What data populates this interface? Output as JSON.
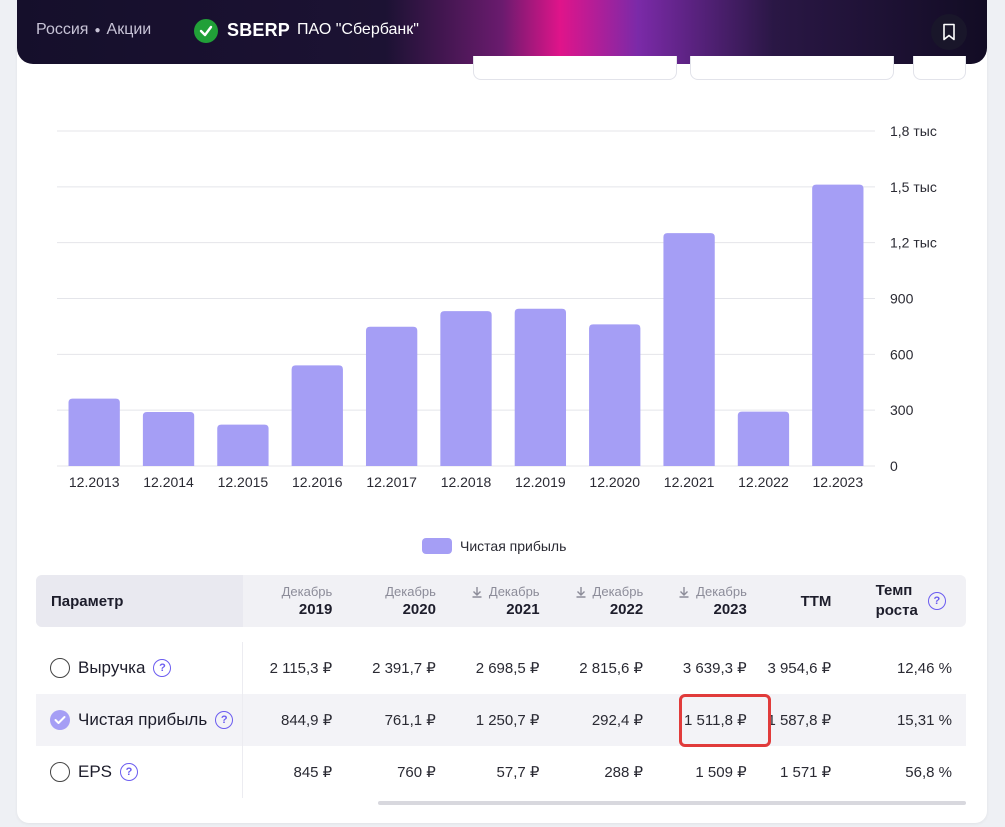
{
  "header": {
    "breadcrumb": [
      "Россия",
      "Акции"
    ],
    "ticker": "SBERP",
    "company": "ПАО \"Сбербанк\"",
    "logo_icon": "sber-logo-icon",
    "bookmark_icon": "bookmark-icon"
  },
  "chart_data": {
    "type": "bar",
    "categories": [
      "12.2013",
      "12.2014",
      "12.2015",
      "12.2016",
      "12.2017",
      "12.2018",
      "12.2019",
      "12.2020",
      "12.2021",
      "12.2022",
      "12.2023"
    ],
    "series": [
      {
        "name": "Чистая прибыль",
        "values": [
          362,
          290,
          222,
          541,
          748,
          832,
          845,
          761,
          1251,
          292,
          1512
        ],
        "color": "#a59ef5"
      }
    ],
    "ylim": [
      0,
      1800
    ],
    "yticks": [
      0,
      300,
      600,
      900,
      1200,
      1500,
      1800
    ],
    "ytick_labels": [
      "0",
      "300",
      "600",
      "900",
      "1,2 тыс",
      "1,5 тыс",
      "1,8 тыс"
    ],
    "grid": true,
    "y_axis_side": "right",
    "legend_position": "bottom-center"
  },
  "table": {
    "param_header": "Параметр",
    "columns": [
      {
        "month": "Декабрь",
        "year": "2019",
        "download_icon": false
      },
      {
        "month": "Декабрь",
        "year": "2020",
        "download_icon": false
      },
      {
        "month": "Декабрь",
        "year": "2021",
        "download_icon": true
      },
      {
        "month": "Декабрь",
        "year": "2022",
        "download_icon": true
      },
      {
        "month": "Декабрь",
        "year": "2023",
        "download_icon": true
      }
    ],
    "ttm_header": "TTM",
    "growth_header_line1": "Темп",
    "growth_header_line2": "роста",
    "rows": [
      {
        "label": "Выручка",
        "selected": false,
        "values": [
          "2 115,3 ₽",
          "2 391,7 ₽",
          "2 698,5 ₽",
          "2 815,6 ₽",
          "3 639,3 ₽"
        ],
        "ttm": "3 954,6 ₽",
        "growth": "12,46 %"
      },
      {
        "label": "Чистая прибыль",
        "selected": true,
        "values": [
          "844,9 ₽",
          "761,1 ₽",
          "1 250,7 ₽",
          "292,4 ₽",
          "1 511,8 ₽"
        ],
        "ttm": "1 587,8 ₽",
        "growth": "15,31 %"
      },
      {
        "label": "EPS",
        "selected": false,
        "values": [
          "845 ₽",
          "760 ₽",
          "57,7 ₽",
          "288 ₽",
          "1 509 ₽"
        ],
        "ttm": "1 571 ₽",
        "growth": "56,8 %"
      }
    ]
  },
  "colors": {
    "accent": "#a59ef5",
    "highlight": "#e13b3b",
    "help_icon": "#6b5cf0"
  }
}
